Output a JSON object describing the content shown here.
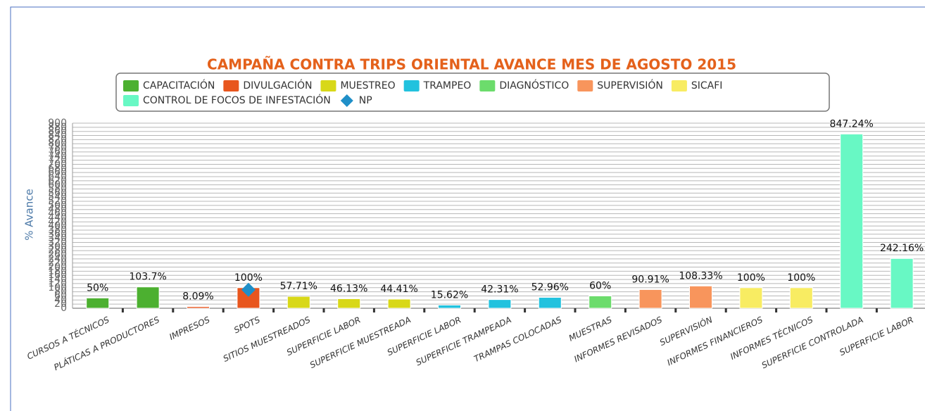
{
  "chart_data": {
    "type": "bar",
    "title": "CAMPAÑA CONTRA TRIPS ORIENTAL AVANCE MES DE AGOSTO 2015",
    "y_label": "% Avance",
    "categories": [
      "CURSOS A TÉCNICOS",
      "PLÁTICAS A PRODUCTORES",
      "IMPRESOS",
      "SPOTS",
      "SITIOS MUESTREADOS",
      "SUPERFICIE LABOR",
      "SUPERFICIE MUESTREADA",
      "SUPERFICIE LABOR",
      "SUPERFICIE TRAMPEADA",
      "TRAMPAS COLOCADAS",
      "MUESTRAS",
      "INFORMES REVISADOS",
      "SUPERVISIÓN",
      "INFORMES FINANCIEROS",
      "INFORMES TÉCNICOS",
      "SUPERFICIE CONTROLADA",
      "SUPERFICIE LABOR"
    ],
    "series": [
      {
        "name": "CAPACITACIÓN",
        "color": "#4cb030",
        "values": [
          50,
          103.7,
          null,
          null,
          null,
          null,
          null,
          null,
          null,
          null,
          null,
          null,
          null,
          null,
          null,
          null,
          null
        ],
        "value_labels": [
          "50%",
          "103.7%",
          null,
          null,
          null,
          null,
          null,
          null,
          null,
          null,
          null,
          null,
          null,
          null,
          null,
          null,
          null
        ]
      },
      {
        "name": "DIVULGACIÓN",
        "color": "#e8561e",
        "values": [
          null,
          null,
          8.09,
          100,
          null,
          null,
          null,
          null,
          null,
          null,
          null,
          null,
          null,
          null,
          null,
          null,
          null
        ],
        "value_labels": [
          null,
          null,
          "8.09%",
          "100%",
          null,
          null,
          null,
          null,
          null,
          null,
          null,
          null,
          null,
          null,
          null,
          null,
          null
        ]
      },
      {
        "name": "MUESTREO",
        "color": "#d8d818",
        "values": [
          null,
          null,
          null,
          null,
          57.71,
          46.13,
          44.41,
          null,
          null,
          null,
          null,
          null,
          null,
          null,
          null,
          null,
          null
        ],
        "value_labels": [
          null,
          null,
          null,
          null,
          "57.71%",
          "46.13%",
          "44.41%",
          null,
          null,
          null,
          null,
          null,
          null,
          null,
          null,
          null,
          null
        ]
      },
      {
        "name": "TRAMPEO",
        "color": "#22c2de",
        "values": [
          null,
          null,
          null,
          null,
          null,
          null,
          null,
          15.62,
          42.31,
          52.96,
          null,
          null,
          null,
          null,
          null,
          null,
          null
        ],
        "value_labels": [
          null,
          null,
          null,
          null,
          null,
          null,
          null,
          "15.62%",
          "42.31%",
          "52.96%",
          null,
          null,
          null,
          null,
          null,
          null,
          null
        ]
      },
      {
        "name": "DIAGNÓSTICO",
        "color": "#6cdc6c",
        "values": [
          null,
          null,
          null,
          null,
          null,
          null,
          null,
          null,
          null,
          null,
          60,
          null,
          null,
          null,
          null,
          null,
          null
        ],
        "value_labels": [
          null,
          null,
          null,
          null,
          null,
          null,
          null,
          null,
          null,
          null,
          "60%",
          null,
          null,
          null,
          null,
          null,
          null
        ]
      },
      {
        "name": "SUPERVISIÓN",
        "color": "#f8955c",
        "values": [
          null,
          null,
          null,
          null,
          null,
          null,
          null,
          null,
          null,
          null,
          null,
          90.91,
          108.33,
          null,
          null,
          null,
          null
        ],
        "value_labels": [
          null,
          null,
          null,
          null,
          null,
          null,
          null,
          null,
          null,
          null,
          null,
          "90.91%",
          "108.33%",
          null,
          null,
          null,
          null
        ]
      },
      {
        "name": "SICAFI",
        "color": "#f8ec62",
        "values": [
          null,
          null,
          null,
          null,
          null,
          null,
          null,
          null,
          null,
          null,
          null,
          null,
          null,
          100,
          100,
          null,
          null
        ],
        "value_labels": [
          null,
          null,
          null,
          null,
          null,
          null,
          null,
          null,
          null,
          null,
          null,
          null,
          null,
          "100%",
          "100%",
          null,
          null
        ]
      },
      {
        "name": "CONTROL DE FOCOS DE INFESTACIÓN",
        "color": "#68f8c4",
        "values": [
          null,
          null,
          null,
          null,
          null,
          null,
          null,
          null,
          null,
          null,
          null,
          null,
          null,
          null,
          null,
          847.24,
          242.16
        ],
        "value_labels": [
          null,
          null,
          null,
          null,
          null,
          null,
          null,
          null,
          null,
          null,
          null,
          null,
          null,
          null,
          null,
          "847.24%",
          "242.16%"
        ]
      },
      {
        "name": "NP",
        "color": "#1f8fc8",
        "type": "scatter",
        "values": [
          null,
          null,
          null,
          90,
          null,
          null,
          null,
          null,
          null,
          null,
          null,
          null,
          null,
          null,
          null,
          null,
          null
        ]
      }
    ],
    "ylim": [
      0,
      900
    ],
    "yticks": [
      0,
      20,
      40,
      60,
      80,
      100,
      120,
      140,
      160,
      180,
      200,
      220,
      240,
      260,
      280,
      300,
      320,
      340,
      360,
      380,
      400,
      420,
      440,
      460,
      480,
      500,
      520,
      540,
      560,
      580,
      600,
      620,
      640,
      660,
      680,
      700,
      720,
      740,
      760,
      780,
      800,
      820,
      840,
      860,
      880,
      900
    ],
    "grid": true
  }
}
